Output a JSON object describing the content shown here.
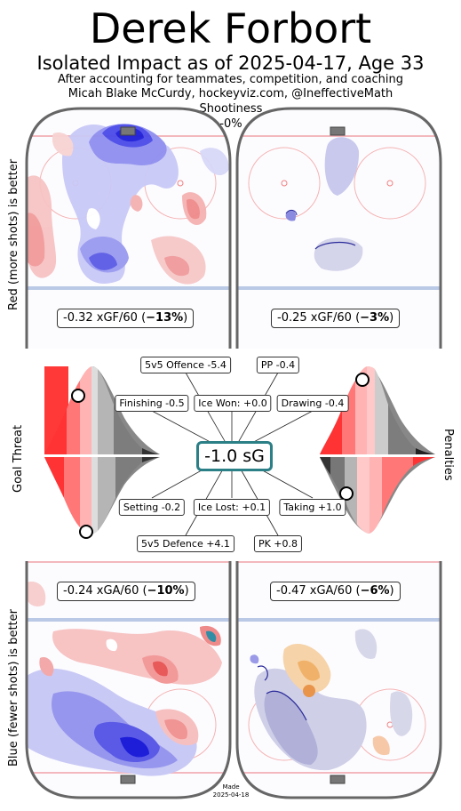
{
  "title": "Derek Forbort",
  "subtitle": "Isolated Impact as of 2025-04-17, Age 33",
  "credit_line1": "After accounting for teammates, competition, and coaching",
  "credit_line2": "Micah Blake McCurdy, hockeyviz.com, @IneffectiveMath",
  "shootiness": {
    "label": "Shootiness",
    "value": "-0%"
  },
  "axis_labels": {
    "top_left": "Red (more shots) is better",
    "mid_left": "Goal Threat",
    "mid_right": "Penalties",
    "bottom_left": "Blue (fewer shots) is better"
  },
  "rink_stats": {
    "offence_5v5": {
      "prefix": "-0.32 xGF/60 (",
      "bold": "−13%",
      "suffix": ")"
    },
    "offence_pp": {
      "prefix": "-0.25 xGF/60 (",
      "bold": "−3%",
      "suffix": ")"
    },
    "defence_5v5": {
      "prefix": "-0.24 xGA/60 (",
      "bold": "−10%",
      "suffix": ")"
    },
    "defence_pk": {
      "prefix": "-0.47 xGA/60 (",
      "bold": "−6%",
      "suffix": ")"
    }
  },
  "summary": {
    "total": "-1.0 sG"
  },
  "components": {
    "offence_5v5": "5v5 Offence -5.4",
    "pp": "PP -0.4",
    "finishing": "Finishing -0.5",
    "ice_won": "Ice Won: +0.0",
    "drawing": "Drawing -0.4",
    "setting": "Setting -0.2",
    "ice_lost": "Ice Lost: +0.1",
    "taking": "Taking +1.0",
    "defence_5v5": "5v5 Defence +4.1",
    "pk": "PK +0.8"
  },
  "made": {
    "label": "Made",
    "date": "2025-04-18"
  },
  "colors": {
    "better_red": "#e8191a",
    "better_blue": "#1a1aee",
    "accent": "#2b7f86",
    "board": "#666666"
  },
  "chart_data": [
    {
      "type": "heatmap",
      "panel": "5v5 offence",
      "metric": "xGF/60",
      "value": -0.32,
      "percent": -13
    },
    {
      "type": "heatmap",
      "panel": "PP offence",
      "metric": "xGF/60",
      "value": -0.25,
      "percent": -3
    },
    {
      "type": "heatmap",
      "panel": "5v5 defence",
      "metric": "xGA/60",
      "value": -0.24,
      "percent": -10
    },
    {
      "type": "heatmap",
      "panel": "PK defence",
      "metric": "xGA/60",
      "value": -0.47,
      "percent": -6
    },
    {
      "type": "bar",
      "panel": "goal threat and penalties",
      "categories": [
        "5v5 Offence",
        "PP",
        "Finishing",
        "Ice Won",
        "Drawing",
        "Setting",
        "Ice Lost",
        "Taking",
        "5v5 Defence",
        "PK"
      ],
      "values": [
        -5.4,
        -0.4,
        -0.5,
        0.0,
        -0.4,
        -0.2,
        0.1,
        1.0,
        4.1,
        0.8
      ],
      "total": -1.0
    }
  ]
}
